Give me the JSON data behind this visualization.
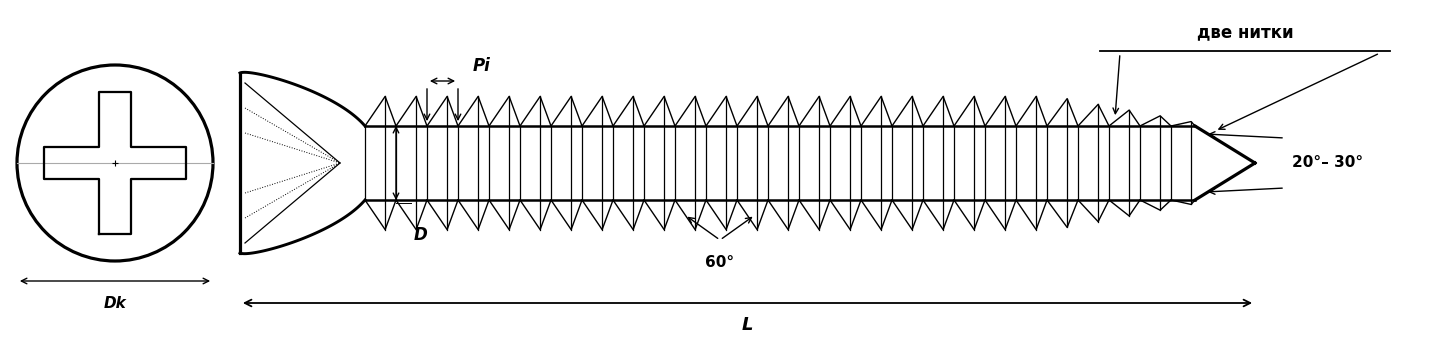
{
  "bg_color": "#ffffff",
  "line_color": "#000000",
  "fig_width": 14.51,
  "fig_height": 3.48,
  "dpi": 100,
  "labels": {
    "Dk": "Dk",
    "D": "D",
    "Pi": "Pi",
    "L": "L",
    "angle_60": "60°",
    "angle_20_30": "20°– 30°",
    "dve_nitki": "две нитки"
  }
}
